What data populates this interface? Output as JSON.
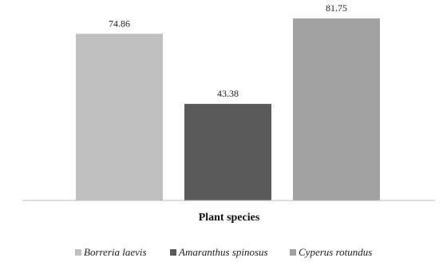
{
  "chart_data": {
    "type": "bar",
    "title": "",
    "xlabel": "Plant species",
    "ylabel": "",
    "ylim": [
      0,
      85
    ],
    "grid": false,
    "legend_position": "bottom",
    "series": [
      {
        "name": "Borreria laevis",
        "values": [
          74.86
        ],
        "value_labels": [
          "74.86"
        ],
        "color": "#c0c0c0"
      },
      {
        "name": "Amaranthus spinosus",
        "values": [
          43.38
        ],
        "value_labels": [
          "43.38"
        ],
        "color": "#5a5a5a"
      },
      {
        "name": "Cyperus rotundus",
        "values": [
          81.75
        ],
        "value_labels": [
          "81.75"
        ],
        "color": "#a2a2a2"
      }
    ]
  }
}
